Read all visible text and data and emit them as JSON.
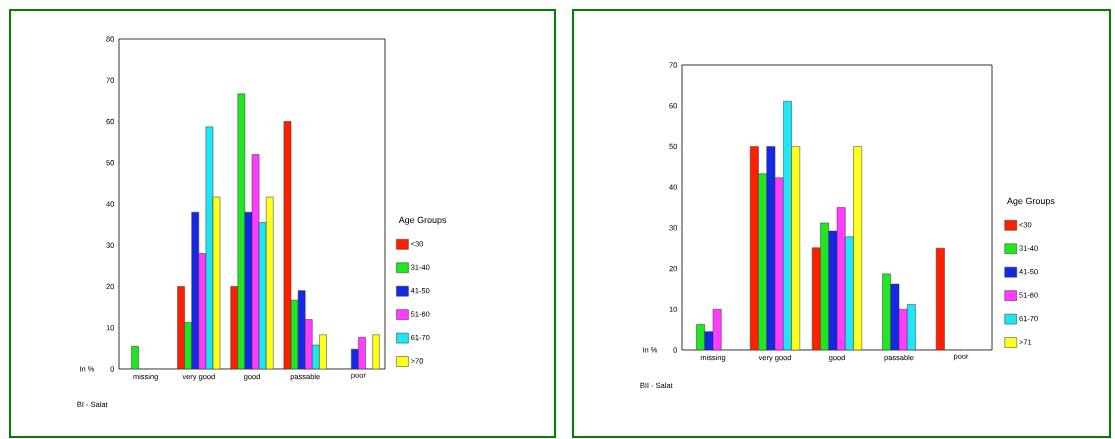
{
  "chart_data": [
    {
      "type": "bar",
      "xlabel": "BI - Salat",
      "ylabel": "In %",
      "legend_title": "Age Groups",
      "legend": "right",
      "categories": [
        "missing",
        "very good",
        "good",
        "passable",
        "poor"
      ],
      "ylim": [
        0,
        80
      ],
      "yticks": [
        0,
        10,
        20,
        30,
        40,
        50,
        60,
        70,
        80
      ],
      "series": [
        {
          "name": "<30",
          "color": "#ff2000",
          "values": [
            null,
            20,
            20,
            60,
            null
          ]
        },
        {
          "name": "31-40",
          "color": "#22e622",
          "values": [
            5.5,
            11.3,
            66.7,
            16.7,
            null
          ]
        },
        {
          "name": "41-50",
          "color": "#1428e6",
          "values": [
            null,
            38,
            38,
            19,
            4.8
          ]
        },
        {
          "name": "51-60",
          "color": "#ff3cff",
          "values": [
            null,
            28,
            52,
            12,
            7.7
          ]
        },
        {
          "name": "61-70",
          "color": "#1ee6f5",
          "values": [
            null,
            58.7,
            35.5,
            5.8,
            null
          ]
        },
        {
          "name": ">70",
          "color": "#ffff1e",
          "values": [
            null,
            41.7,
            41.7,
            8.3,
            8.3
          ]
        }
      ]
    },
    {
      "type": "bar",
      "xlabel": "BII - Salat",
      "ylabel": "In %",
      "legend_title": "Age Groups",
      "legend": "right",
      "categories": [
        "missing",
        "very good",
        "good",
        "passable",
        "poor"
      ],
      "ylim": [
        0,
        70
      ],
      "yticks": [
        0,
        10,
        20,
        30,
        40,
        50,
        60,
        70
      ],
      "series": [
        {
          "name": "<30",
          "color": "#ff2000",
          "values": [
            null,
            50,
            25.1,
            null,
            25
          ]
        },
        {
          "name": "31-40",
          "color": "#22e622",
          "values": [
            6.3,
            43.3,
            31.2,
            18.7,
            null
          ]
        },
        {
          "name": "41-50",
          "color": "#1428e6",
          "values": [
            4.5,
            50,
            29.2,
            16.2,
            null
          ]
        },
        {
          "name": "51-60",
          "color": "#ff3cff",
          "values": [
            10,
            42.3,
            35,
            10,
            null
          ]
        },
        {
          "name": "61-70",
          "color": "#1ee6f5",
          "values": [
            null,
            61.1,
            27.8,
            11.2,
            null
          ]
        },
        {
          "name": ">71",
          "color": "#ffff1e",
          "values": [
            null,
            50,
            50,
            null,
            null
          ]
        }
      ]
    }
  ]
}
